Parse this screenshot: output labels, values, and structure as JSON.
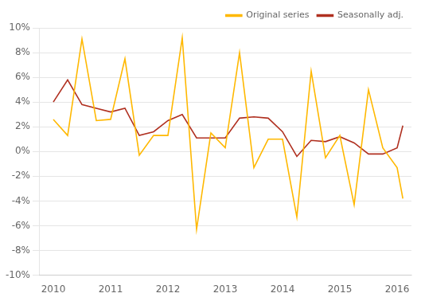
{
  "chart_data": {
    "type": "line",
    "x": [
      2010.0,
      2010.25,
      2010.5,
      2010.75,
      2011.0,
      2011.25,
      2011.5,
      2011.75,
      2012.0,
      2012.25,
      2012.5,
      2012.75,
      2013.0,
      2013.25,
      2013.5,
      2013.75,
      2014.0,
      2014.25,
      2014.5,
      2014.75,
      2015.0,
      2015.25,
      2015.5,
      2015.75,
      2016.0,
      2016.1
    ],
    "series": [
      {
        "name": "Original series",
        "color": "#FFB800",
        "values": [
          0.026,
          0.013,
          0.091,
          0.025,
          0.026,
          0.075,
          -0.003,
          0.013,
          0.013,
          0.092,
          -0.063,
          0.015,
          0.003,
          0.08,
          -0.013,
          0.01,
          0.01,
          -0.053,
          0.065,
          -0.005,
          0.013,
          -0.043,
          0.05,
          0.003,
          -0.013,
          -0.038
        ]
      },
      {
        "name": "Seasonally adj.",
        "color": "#B03020",
        "values": [
          0.04,
          0.058,
          0.038,
          0.035,
          0.032,
          0.035,
          0.013,
          0.016,
          0.025,
          0.03,
          0.011,
          0.011,
          0.011,
          0.027,
          0.028,
          0.027,
          0.016,
          -0.004,
          0.009,
          0.008,
          0.012,
          0.007,
          -0.002,
          -0.002,
          0.003,
          0.021
        ]
      }
    ],
    "xlim": [
      2009.75,
      2016.25
    ],
    "xticks": [
      2010,
      2011,
      2012,
      2013,
      2014,
      2015,
      2016
    ],
    "ylim": [
      -0.1,
      0.1
    ],
    "yticks": [
      {
        "value": -0.1,
        "label": "-10%"
      },
      {
        "value": -0.08,
        "label": "-8%"
      },
      {
        "value": -0.06,
        "label": "-6%"
      },
      {
        "value": -0.04,
        "label": "-4%"
      },
      {
        "value": -0.02,
        "label": "-2%"
      },
      {
        "value": 0.0,
        "label": "0%"
      },
      {
        "value": 0.02,
        "label": "2%"
      },
      {
        "value": 0.04,
        "label": "4%"
      },
      {
        "value": 0.06,
        "label": "6%"
      },
      {
        "value": 0.08,
        "label": "8%"
      },
      {
        "value": 0.1,
        "label": "10%"
      }
    ],
    "grid": "y",
    "legend": "upper right"
  }
}
